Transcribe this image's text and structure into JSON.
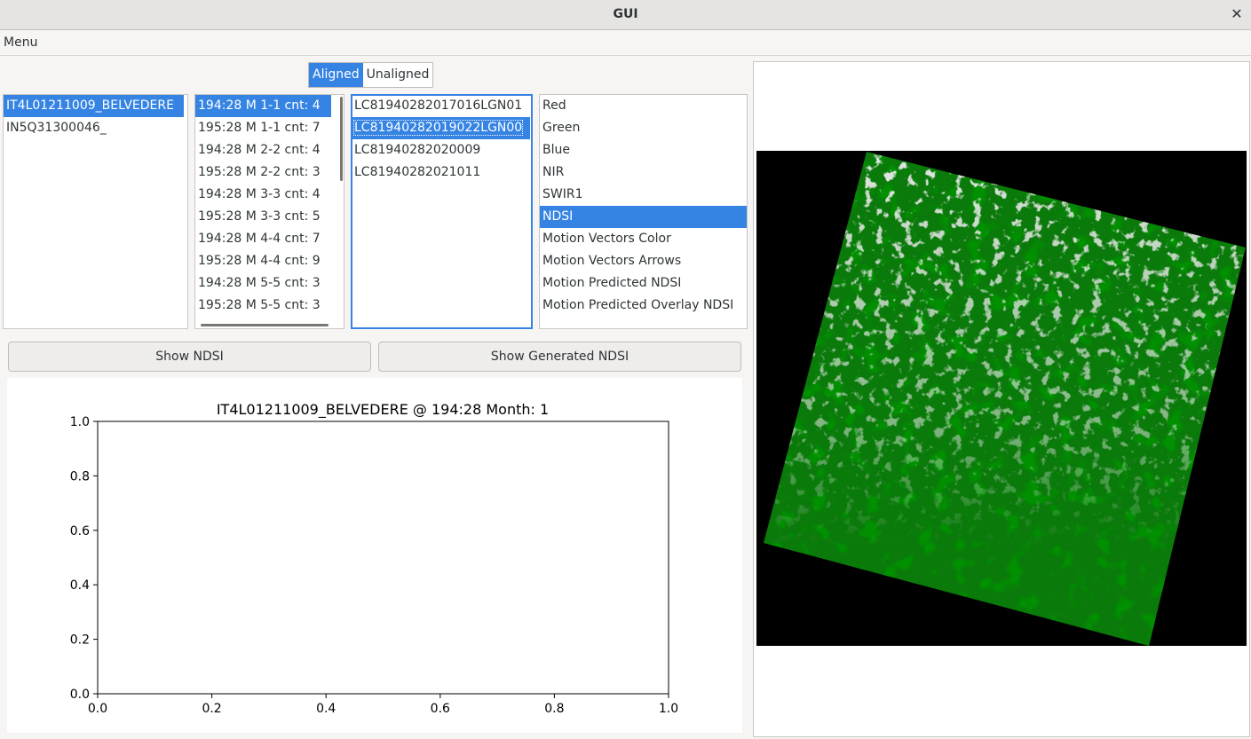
{
  "window": {
    "title": "GUI",
    "close_glyph": "✕"
  },
  "menubar": {
    "menu_label": "Menu"
  },
  "mode_toggle": {
    "aligned_label": "Aligned",
    "unaligned_label": "Unaligned",
    "selected": "Aligned"
  },
  "sites": {
    "items": [
      "IT4L01211009_BELVEDERE",
      "IN5Q31300046_"
    ],
    "selected_index": 0
  },
  "groups": {
    "items": [
      "194:28 M 1-1 cnt: 4",
      "195:28 M 1-1 cnt: 7",
      "194:28 M 2-2 cnt: 4",
      "195:28 M 2-2 cnt: 3",
      "194:28 M 3-3 cnt: 4",
      "195:28 M 3-3 cnt: 5",
      "194:28 M 4-4 cnt: 7",
      "195:28 M 4-4 cnt: 9",
      "194:28 M 5-5 cnt: 3",
      "195:28 M 5-5 cnt: 3"
    ],
    "selected_index": 0
  },
  "scenes": {
    "items": [
      "LC81940282017016LGN01",
      "LC81940282019022LGN00",
      "LC81940282020009",
      "LC81940282021011"
    ],
    "selected_index": 1
  },
  "bands": {
    "items": [
      "Red",
      "Green",
      "Blue",
      "NIR",
      "SWIR1",
      "NDSI",
      "Motion Vectors Color",
      "Motion Vectors Arrows",
      "Motion Predicted NDSI",
      "Motion Predicted Overlay NDSI"
    ],
    "selected_index": 5
  },
  "buttons": {
    "show_ndsi": "Show NDSI",
    "show_generated_ndsi": "Show Generated NDSI"
  },
  "chart_data": {
    "type": "line",
    "title": "IT4L01211009_BELVEDERE @ 194:28 Month: 1",
    "xlabel": "",
    "ylabel": "",
    "xlim": [
      0.0,
      1.0
    ],
    "ylim": [
      0.0,
      1.0
    ],
    "xticks": [
      "0.0",
      "0.2",
      "0.4",
      "0.6",
      "0.8",
      "1.0"
    ],
    "yticks": [
      "0.0",
      "0.2",
      "0.4",
      "0.6",
      "0.8",
      "1.0"
    ],
    "series": [],
    "grid": false
  },
  "image_view": {
    "content": "NDSI satellite scene",
    "colors": {
      "vegetation": "#0a7a0a",
      "snow": "#c8c8c8",
      "background": "#000000"
    }
  },
  "colors": {
    "accent": "#3584e4"
  }
}
